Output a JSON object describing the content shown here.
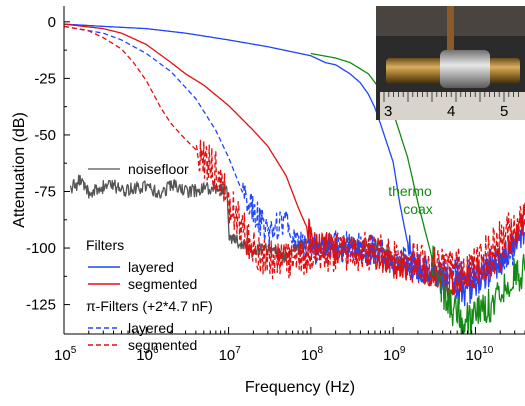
{
  "chart_data": {
    "type": "line",
    "xscale": "log",
    "xlim": [
      100000,
      40000000000
    ],
    "ylim": [
      -138,
      7
    ],
    "xlabel": "Frequency (Hz)",
    "ylabel": "Attenuation (dB)",
    "yticks": [
      "0",
      "-25",
      "-50",
      "-75",
      "-100",
      "-125"
    ],
    "xticks": [
      {
        "base": "10",
        "exp": "5"
      },
      {
        "base": "10",
        "exp": "6"
      },
      {
        "base": "10",
        "exp": "7"
      },
      {
        "base": "10",
        "exp": "8"
      },
      {
        "base": "10",
        "exp": "9"
      },
      {
        "base": "10",
        "exp": "10"
      }
    ],
    "grid": false,
    "annotations": {
      "noisefloor": "noisefloor",
      "thermo_line1": "thermo",
      "thermo_line2": "coax",
      "filters_header": "Filters",
      "pi_header": "π-Filters (+2*4.7 nF)"
    },
    "inset_ruler_labels": [
      "3",
      "4",
      "5"
    ],
    "legend_placement": "bottom-left",
    "series": [
      {
        "name": "noisefloor",
        "color": "#555555",
        "dash": "solid",
        "legend": false,
        "x": [
          120000,
          160000,
          200000,
          300000,
          400000,
          500000,
          700000,
          1000000,
          1500000,
          2000000,
          3000000,
          5000000,
          7000000,
          9500000,
          10000000,
          10500000,
          15000000,
          20000000,
          30000000,
          50000000,
          70000000,
          100000000,
          150000000,
          200000000,
          300000000,
          500000000,
          700000000,
          1000000000,
          1500000000,
          2000000000,
          3000000000
        ],
        "y": [
          -74,
          -70,
          -76,
          -73,
          -72,
          -75,
          -74,
          -73,
          -76,
          -72,
          -75,
          -74,
          -73,
          -75,
          -92,
          -96,
          -98,
          -102,
          -100,
          -104,
          -99,
          -98,
          -99,
          -101,
          -98,
          -100,
          -99,
          -106,
          -108,
          -112,
          -114
        ],
        "noise": 3
      },
      {
        "name": "layered",
        "color": "#1f45ff",
        "dash": "solid",
        "legend": true,
        "x": [
          100000,
          300000,
          1000000,
          3000000,
          10000000,
          30000000,
          100000000,
          150000000,
          200000000,
          300000000,
          400000000,
          500000000,
          600000000,
          700000000,
          1000000000,
          1200000000,
          1500000000,
          2000000000,
          3000000000,
          5000000000,
          8000000000,
          10000000000,
          15000000000,
          20000000000,
          30000000000,
          40000000000
        ],
        "y": [
          -1,
          -2,
          -3,
          -5,
          -8,
          -11,
          -15,
          -18,
          -19,
          -23,
          -27,
          -32,
          -38,
          -45,
          -62,
          -80,
          -98,
          -108,
          -112,
          -118,
          -120,
          -116,
          -112,
          -107,
          -98,
          -93
        ],
        "noise_from": 1500000000,
        "noise": 6
      },
      {
        "name": "segmented",
        "color": "#e01010",
        "dash": "solid",
        "legend": true,
        "x": [
          100000,
          300000,
          500000,
          1000000,
          2000000,
          3000000,
          5000000,
          10000000,
          20000000,
          30000000,
          50000000,
          70000000,
          100000000,
          120000000,
          150000000,
          200000000,
          300000000,
          500000000,
          1000000000,
          2000000000,
          5000000000,
          10000000000,
          20000000000,
          30000000000,
          40000000000
        ],
        "y": [
          -1,
          -3,
          -5,
          -10,
          -18,
          -23,
          -28,
          -37,
          -48,
          -55,
          -68,
          -82,
          -95,
          -99,
          -98,
          -100,
          -101,
          -103,
          -108,
          -110,
          -115,
          -112,
          -105,
          -97,
          -80
        ],
        "noise_from": 90000000,
        "noise": 6
      },
      {
        "name": "thermo coax",
        "color": "#138a13",
        "dash": "solid",
        "legend": false,
        "x": [
          100000000,
          200000000,
          300000000,
          500000000,
          700000000,
          1000000000,
          1500000000,
          2000000000,
          3000000000,
          4000000000,
          5000000000,
          7000000000,
          10000000000,
          15000000000,
          20000000000,
          30000000000,
          40000000000
        ],
        "y": [
          -14,
          -16,
          -18,
          -23,
          -30,
          -40,
          -60,
          -80,
          -105,
          -118,
          -125,
          -133,
          -130,
          -125,
          -118,
          -112,
          -110
        ],
        "noise_from": 3000000000,
        "noise": 8
      },
      {
        "name": "layered",
        "color": "#1f45ff",
        "dash": "dashed",
        "legend": true,
        "x": [
          100000,
          300000,
          500000,
          1000000,
          2000000,
          4000000,
          7000000,
          10000000,
          15000000,
          20000000,
          30000000,
          50000000,
          70000000,
          80000000,
          100000000,
          200000000,
          500000000,
          1000000000,
          3000000000,
          10000000000,
          30000000000
        ],
        "y": [
          -2,
          -5,
          -8,
          -14,
          -22,
          -34,
          -48,
          -60,
          -76,
          -84,
          -92,
          -90,
          -98,
          -100,
          -101,
          -99,
          -100,
          -105,
          -110,
          -112,
          -100
        ],
        "noise_from": 15000000,
        "noise": 7
      },
      {
        "name": "segmented",
        "color": "#e01010",
        "dash": "dashed",
        "legend": true,
        "x": [
          100000,
          200000,
          300000,
          500000,
          700000,
          1000000,
          1500000,
          2000000,
          3000000,
          5000000,
          7000000,
          10000000,
          15000000,
          20000000,
          30000000,
          50000000,
          100000000,
          200000000,
          500000000,
          1000000000,
          3000000000,
          10000000000,
          20000000000,
          40000000000
        ],
        "y": [
          -2,
          -4,
          -7,
          -12,
          -18,
          -26,
          -38,
          -45,
          -52,
          -60,
          -66,
          -80,
          -92,
          -100,
          -104,
          -106,
          -103,
          -102,
          -101,
          -103,
          -108,
          -108,
          -96,
          -86
        ],
        "noise_from": 4000000,
        "noise": 9
      }
    ]
  }
}
